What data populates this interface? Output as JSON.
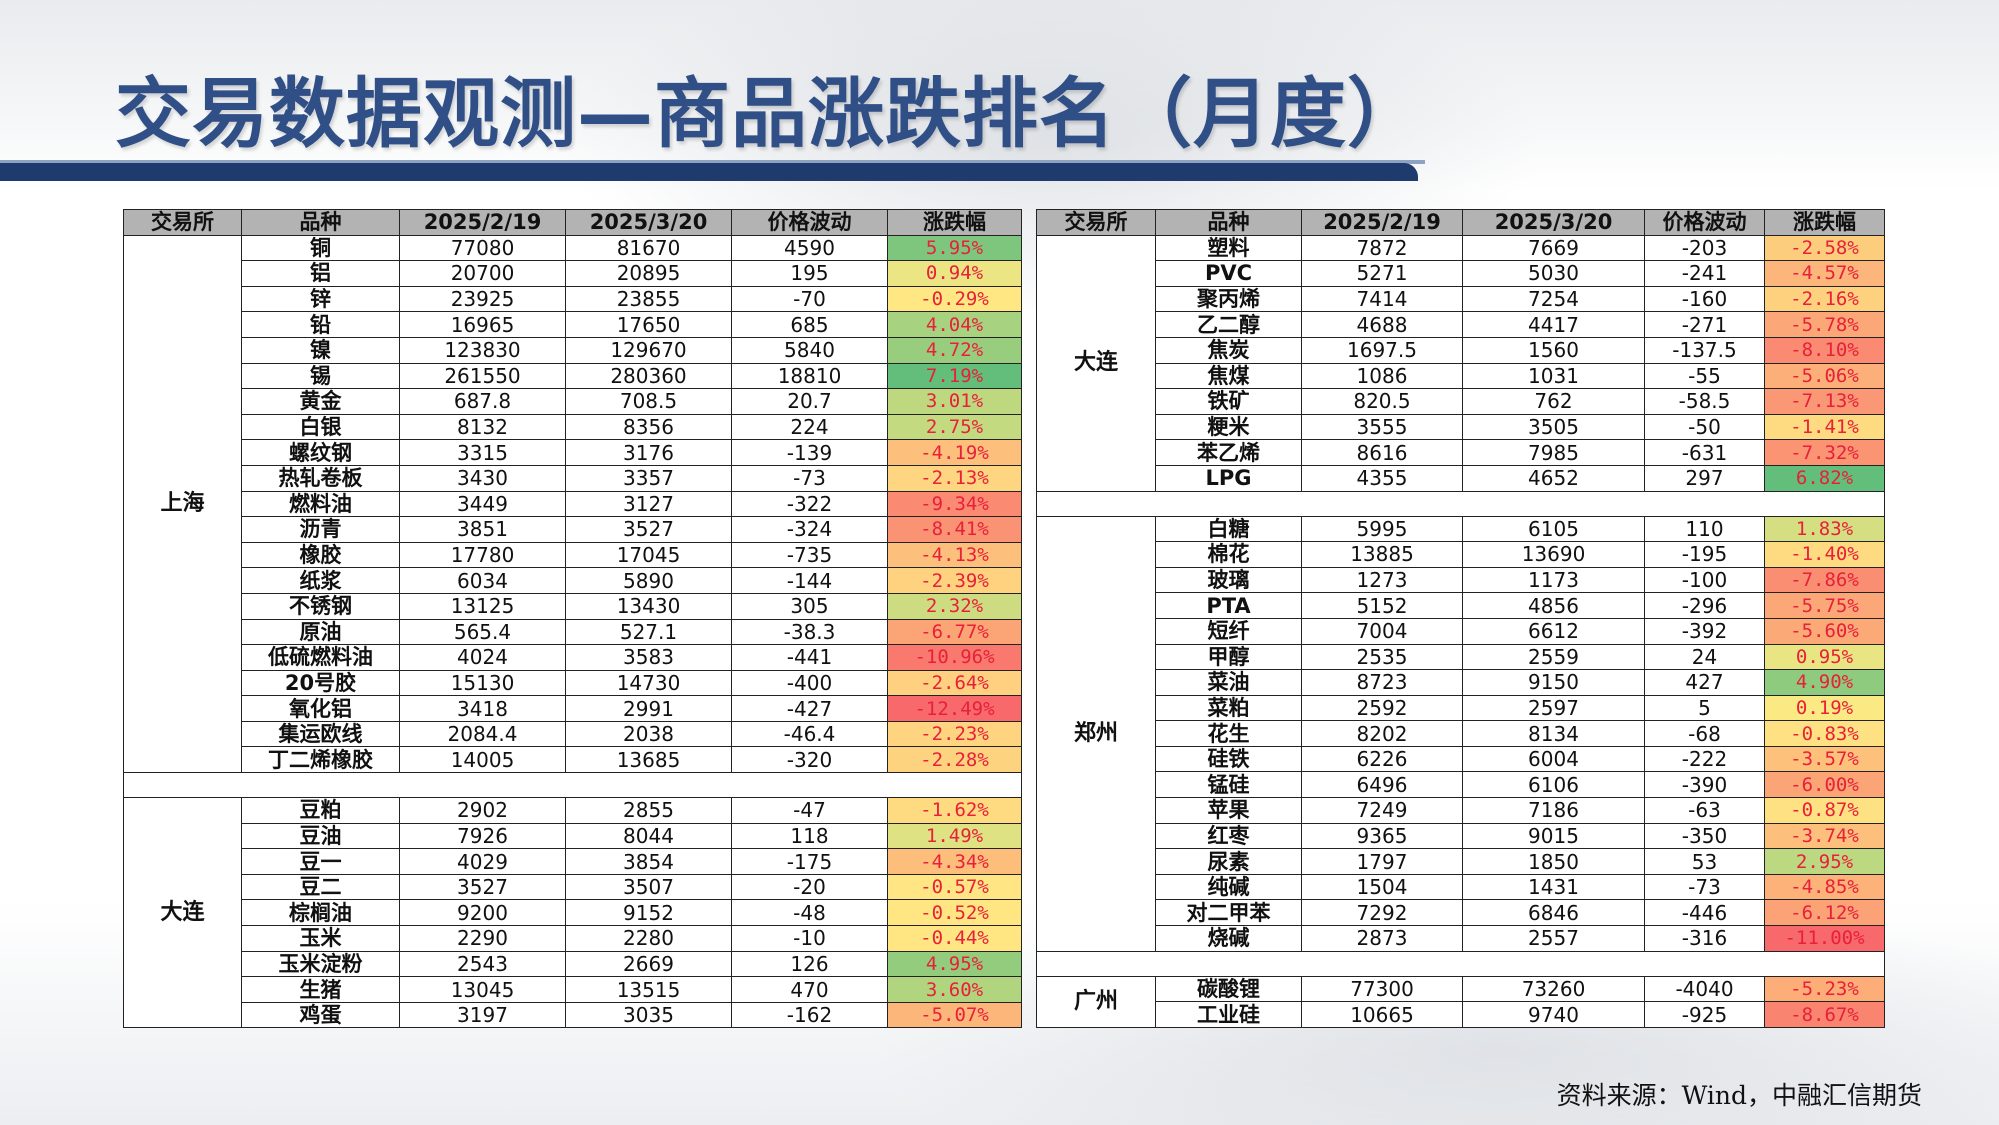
{
  "title": "交易数据观测—商品涨跌排名（月度）",
  "headers": [
    "交易所",
    "品种",
    "2025/2/19",
    "2025/3/20",
    "价格波动",
    "涨跌幅"
  ],
  "left_groups": [
    {
      "exchange": "上海",
      "rows": [
        {
          "name": "铜",
          "d1": "77080",
          "d2": "81670",
          "change": "4590",
          "pct": "5.95%",
          "pct_value": 5.95
        },
        {
          "name": "铝",
          "d1": "20700",
          "d2": "20895",
          "change": "195",
          "pct": "0.94%",
          "pct_value": 0.94
        },
        {
          "name": "锌",
          "d1": "23925",
          "d2": "23855",
          "change": "-70",
          "pct": "-0.29%",
          "pct_value": -0.29
        },
        {
          "name": "铅",
          "d1": "16965",
          "d2": "17650",
          "change": "685",
          "pct": "4.04%",
          "pct_value": 4.04
        },
        {
          "name": "镍",
          "d1": "123830",
          "d2": "129670",
          "change": "5840",
          "pct": "4.72%",
          "pct_value": 4.72
        },
        {
          "name": "锡",
          "d1": "261550",
          "d2": "280360",
          "change": "18810",
          "pct": "7.19%",
          "pct_value": 7.19
        },
        {
          "name": "黄金",
          "d1": "687.8",
          "d2": "708.5",
          "change": "20.7",
          "pct": "3.01%",
          "pct_value": 3.01
        },
        {
          "name": "白银",
          "d1": "8132",
          "d2": "8356",
          "change": "224",
          "pct": "2.75%",
          "pct_value": 2.75
        },
        {
          "name": "螺纹钢",
          "d1": "3315",
          "d2": "3176",
          "change": "-139",
          "pct": "-4.19%",
          "pct_value": -4.19
        },
        {
          "name": "热轧卷板",
          "d1": "3430",
          "d2": "3357",
          "change": "-73",
          "pct": "-2.13%",
          "pct_value": -2.13
        },
        {
          "name": "燃料油",
          "d1": "3449",
          "d2": "3127",
          "change": "-322",
          "pct": "-9.34%",
          "pct_value": -9.34
        },
        {
          "name": "沥青",
          "d1": "3851",
          "d2": "3527",
          "change": "-324",
          "pct": "-8.41%",
          "pct_value": -8.41
        },
        {
          "name": "橡胶",
          "d1": "17780",
          "d2": "17045",
          "change": "-735",
          "pct": "-4.13%",
          "pct_value": -4.13
        },
        {
          "name": "纸浆",
          "d1": "6034",
          "d2": "5890",
          "change": "-144",
          "pct": "-2.39%",
          "pct_value": -2.39
        },
        {
          "name": "不锈钢",
          "d1": "13125",
          "d2": "13430",
          "change": "305",
          "pct": "2.32%",
          "pct_value": 2.32
        },
        {
          "name": "原油",
          "d1": "565.4",
          "d2": "527.1",
          "change": "-38.3",
          "pct": "-6.77%",
          "pct_value": -6.77
        },
        {
          "name": "低硫燃料油",
          "d1": "4024",
          "d2": "3583",
          "change": "-441",
          "pct": "-10.96%",
          "pct_value": -10.96
        },
        {
          "name": "20号胶",
          "d1": "15130",
          "d2": "14730",
          "change": "-400",
          "pct": "-2.64%",
          "pct_value": -2.64
        },
        {
          "name": "氧化铝",
          "d1": "3418",
          "d2": "2991",
          "change": "-427",
          "pct": "-12.49%",
          "pct_value": -12.49
        },
        {
          "name": "集运欧线",
          "d1": "2084.4",
          "d2": "2038",
          "change": "-46.4",
          "pct": "-2.23%",
          "pct_value": -2.23
        },
        {
          "name": "丁二烯橡胶",
          "d1": "14005",
          "d2": "13685",
          "change": "-320",
          "pct": "-2.28%",
          "pct_value": -2.28
        }
      ]
    },
    {
      "exchange": "大连",
      "rows": [
        {
          "name": "豆粕",
          "d1": "2902",
          "d2": "2855",
          "change": "-47",
          "pct": "-1.62%",
          "pct_value": -1.62
        },
        {
          "name": "豆油",
          "d1": "7926",
          "d2": "8044",
          "change": "118",
          "pct": "1.49%",
          "pct_value": 1.49
        },
        {
          "name": "豆一",
          "d1": "4029",
          "d2": "3854",
          "change": "-175",
          "pct": "-4.34%",
          "pct_value": -4.34
        },
        {
          "name": "豆二",
          "d1": "3527",
          "d2": "3507",
          "change": "-20",
          "pct": "-0.57%",
          "pct_value": -0.57
        },
        {
          "name": "棕榈油",
          "d1": "9200",
          "d2": "9152",
          "change": "-48",
          "pct": "-0.52%",
          "pct_value": -0.52
        },
        {
          "name": "玉米",
          "d1": "2290",
          "d2": "2280",
          "change": "-10",
          "pct": "-0.44%",
          "pct_value": -0.44
        },
        {
          "name": "玉米淀粉",
          "d1": "2543",
          "d2": "2669",
          "change": "126",
          "pct": "4.95%",
          "pct_value": 4.95
        },
        {
          "name": "生猪",
          "d1": "13045",
          "d2": "13515",
          "change": "470",
          "pct": "3.60%",
          "pct_value": 3.6
        },
        {
          "name": "鸡蛋",
          "d1": "3197",
          "d2": "3035",
          "change": "-162",
          "pct": "-5.07%",
          "pct_value": -5.07
        }
      ]
    }
  ],
  "right_groups": [
    {
      "exchange": "大连",
      "rows": [
        {
          "name": "塑料",
          "d1": "7872",
          "d2": "7669",
          "change": "-203",
          "pct": "-2.58%",
          "pct_value": -2.58
        },
        {
          "name": "PVC",
          "d1": "5271",
          "d2": "5030",
          "change": "-241",
          "pct": "-4.57%",
          "pct_value": -4.57
        },
        {
          "name": "聚丙烯",
          "d1": "7414",
          "d2": "7254",
          "change": "-160",
          "pct": "-2.16%",
          "pct_value": -2.16
        },
        {
          "name": "乙二醇",
          "d1": "4688",
          "d2": "4417",
          "change": "-271",
          "pct": "-5.78%",
          "pct_value": -5.78
        },
        {
          "name": "焦炭",
          "d1": "1697.5",
          "d2": "1560",
          "change": "-137.5",
          "pct": "-8.10%",
          "pct_value": -8.1
        },
        {
          "name": "焦煤",
          "d1": "1086",
          "d2": "1031",
          "change": "-55",
          "pct": "-5.06%",
          "pct_value": -5.06
        },
        {
          "name": "铁矿",
          "d1": "820.5",
          "d2": "762",
          "change": "-58.5",
          "pct": "-7.13%",
          "pct_value": -7.13
        },
        {
          "name": "粳米",
          "d1": "3555",
          "d2": "3505",
          "change": "-50",
          "pct": "-1.41%",
          "pct_value": -1.41
        },
        {
          "name": "苯乙烯",
          "d1": "8616",
          "d2": "7985",
          "change": "-631",
          "pct": "-7.32%",
          "pct_value": -7.32
        },
        {
          "name": "LPG",
          "d1": "4355",
          "d2": "4652",
          "change": "297",
          "pct": "6.82%",
          "pct_value": 6.82
        }
      ]
    },
    {
      "exchange": "郑州",
      "rows": [
        {
          "name": "白糖",
          "d1": "5995",
          "d2": "6105",
          "change": "110",
          "pct": "1.83%",
          "pct_value": 1.83
        },
        {
          "name": "棉花",
          "d1": "13885",
          "d2": "13690",
          "change": "-195",
          "pct": "-1.40%",
          "pct_value": -1.4
        },
        {
          "name": "玻璃",
          "d1": "1273",
          "d2": "1173",
          "change": "-100",
          "pct": "-7.86%",
          "pct_value": -7.86
        },
        {
          "name": "PTA",
          "d1": "5152",
          "d2": "4856",
          "change": "-296",
          "pct": "-5.75%",
          "pct_value": -5.75
        },
        {
          "name": "短纤",
          "d1": "7004",
          "d2": "6612",
          "change": "-392",
          "pct": "-5.60%",
          "pct_value": -5.6
        },
        {
          "name": "甲醇",
          "d1": "2535",
          "d2": "2559",
          "change": "24",
          "pct": "0.95%",
          "pct_value": 0.95
        },
        {
          "name": "菜油",
          "d1": "8723",
          "d2": "9150",
          "change": "427",
          "pct": "4.90%",
          "pct_value": 4.9
        },
        {
          "name": "菜粕",
          "d1": "2592",
          "d2": "2597",
          "change": "5",
          "pct": "0.19%",
          "pct_value": 0.19
        },
        {
          "name": "花生",
          "d1": "8202",
          "d2": "8134",
          "change": "-68",
          "pct": "-0.83%",
          "pct_value": -0.83
        },
        {
          "name": "硅铁",
          "d1": "6226",
          "d2": "6004",
          "change": "-222",
          "pct": "-3.57%",
          "pct_value": -3.57
        },
        {
          "name": "锰硅",
          "d1": "6496",
          "d2": "6106",
          "change": "-390",
          "pct": "-6.00%",
          "pct_value": -6.0
        },
        {
          "name": "苹果",
          "d1": "7249",
          "d2": "7186",
          "change": "-63",
          "pct": "-0.87%",
          "pct_value": -0.87
        },
        {
          "name": "红枣",
          "d1": "9365",
          "d2": "9015",
          "change": "-350",
          "pct": "-3.74%",
          "pct_value": -3.74
        },
        {
          "name": "尿素",
          "d1": "1797",
          "d2": "1850",
          "change": "53",
          "pct": "2.95%",
          "pct_value": 2.95
        },
        {
          "name": "纯碱",
          "d1": "1504",
          "d2": "1431",
          "change": "-73",
          "pct": "-4.85%",
          "pct_value": -4.85
        },
        {
          "name": "对二甲苯",
          "d1": "7292",
          "d2": "6846",
          "change": "-446",
          "pct": "-6.12%",
          "pct_value": -6.12
        },
        {
          "name": "烧碱",
          "d1": "2873",
          "d2": "2557",
          "change": "-316",
          "pct": "-11.00%",
          "pct_value": -11.0
        }
      ]
    },
    {
      "exchange": "广州",
      "rows": [
        {
          "name": "碳酸锂",
          "d1": "77300",
          "d2": "73260",
          "change": "-4040",
          "pct": "-5.23%",
          "pct_value": -5.23
        },
        {
          "name": "工业硅",
          "d1": "10665",
          "d2": "9740",
          "change": "-925",
          "pct": "-8.67%",
          "pct_value": -8.67
        }
      ]
    }
  ],
  "source": "资料来源：Wind，中融汇信期货",
  "colors": {
    "title": "#2f4f86",
    "header_bg": "#b3b3b3",
    "pct_text": "#e8203a",
    "scale_red": "#f8696b",
    "scale_yellow": "#ffeb84",
    "scale_green": "#63be7b"
  }
}
